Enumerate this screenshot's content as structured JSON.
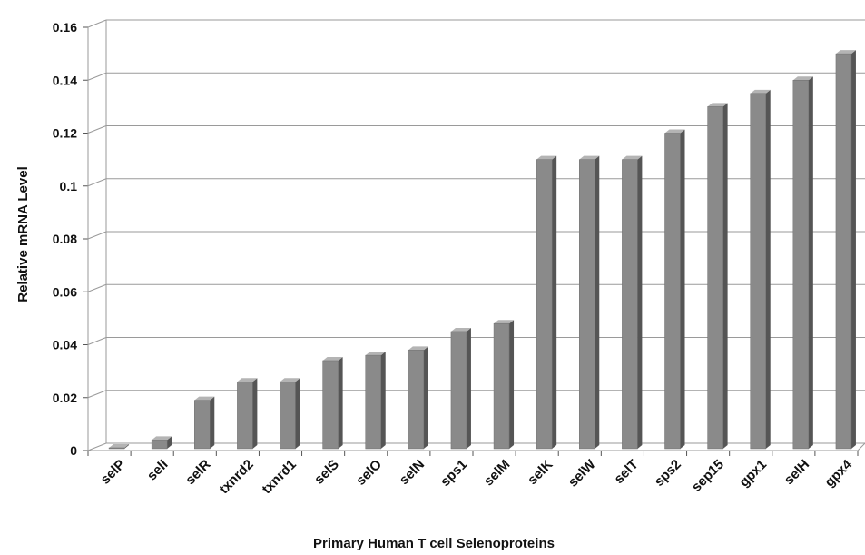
{
  "chart_data": {
    "type": "bar",
    "title": "",
    "xlabel": "Primary Human T cell Selenoproteins",
    "ylabel": "Relative mRNA Level",
    "ylim": [
      0,
      0.16
    ],
    "yticks": [
      "0",
      "0.02",
      "0.04",
      "0.06",
      "0.08",
      "0.1",
      "0.12",
      "0.14",
      "0.16"
    ],
    "categories": [
      "selP",
      "selI",
      "selR",
      "txnrd2",
      "txnrd1",
      "selS",
      "selO",
      "selN",
      "sps1",
      "selM",
      "selK",
      "selW",
      "selT",
      "sps2",
      "sep15",
      "gpx1",
      "selH",
      "gpx4"
    ],
    "values": [
      0.001,
      0.004,
      0.019,
      0.026,
      0.026,
      0.034,
      0.036,
      0.038,
      0.045,
      0.048,
      0.11,
      0.11,
      0.11,
      0.12,
      0.13,
      0.135,
      0.14,
      0.15
    ],
    "grid": true,
    "legend": "none",
    "style": "3d-bars",
    "colors": {
      "bar_front": "#8a8a8a",
      "bar_side": "#555555",
      "bar_top": "#b4b4b4",
      "grid": "#9a9a9a"
    }
  }
}
